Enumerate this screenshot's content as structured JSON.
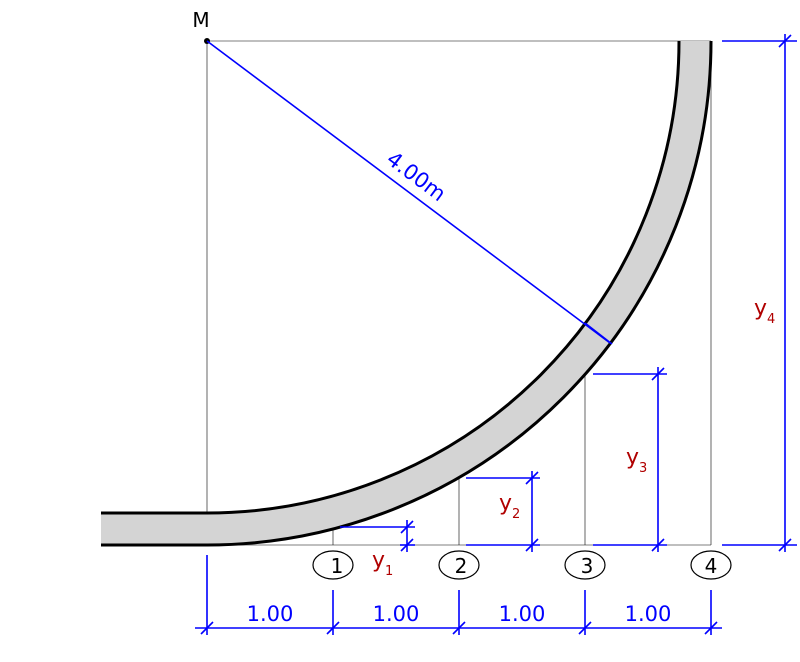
{
  "center_label": "M",
  "radius_label": "4.00m",
  "stations": [
    "1",
    "2",
    "3",
    "4"
  ],
  "ordinates": [
    {
      "letter": "y",
      "index": "1"
    },
    {
      "letter": "y",
      "index": "2"
    },
    {
      "letter": "y",
      "index": "3"
    },
    {
      "letter": "y",
      "index": "4"
    }
  ],
  "spacings": [
    "1.00",
    "1.00",
    "1.00",
    "1.00"
  ]
}
